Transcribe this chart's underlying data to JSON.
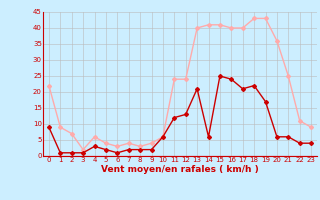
{
  "x": [
    0,
    1,
    2,
    3,
    4,
    5,
    6,
    7,
    8,
    9,
    10,
    11,
    12,
    13,
    14,
    15,
    16,
    17,
    18,
    19,
    20,
    21,
    22,
    23
  ],
  "wind_avg": [
    9,
    1,
    1,
    1,
    3,
    2,
    1,
    2,
    2,
    2,
    6,
    12,
    13,
    21,
    6,
    25,
    24,
    21,
    22,
    17,
    6,
    6,
    4,
    4
  ],
  "wind_gust": [
    22,
    9,
    7,
    2,
    6,
    4,
    3,
    4,
    3,
    4,
    6,
    24,
    24,
    40,
    41,
    41,
    40,
    40,
    43,
    43,
    36,
    25,
    11,
    9
  ],
  "xlabel": "Vent moyen/en rafales ( km/h )",
  "ylim": [
    0,
    45
  ],
  "yticks": [
    0,
    5,
    10,
    15,
    20,
    25,
    30,
    35,
    40,
    45
  ],
  "xticks": [
    0,
    1,
    2,
    3,
    4,
    5,
    6,
    7,
    8,
    9,
    10,
    11,
    12,
    13,
    14,
    15,
    16,
    17,
    18,
    19,
    20,
    21,
    22,
    23
  ],
  "color_avg": "#cc0000",
  "color_gust": "#ffaaaa",
  "bg_color": "#cceeff",
  "grid_color": "#bbbbbb",
  "marker": "D",
  "marker_size": 2.0,
  "line_width": 1.0,
  "tick_fontsize": 5.0,
  "xlabel_fontsize": 6.5
}
